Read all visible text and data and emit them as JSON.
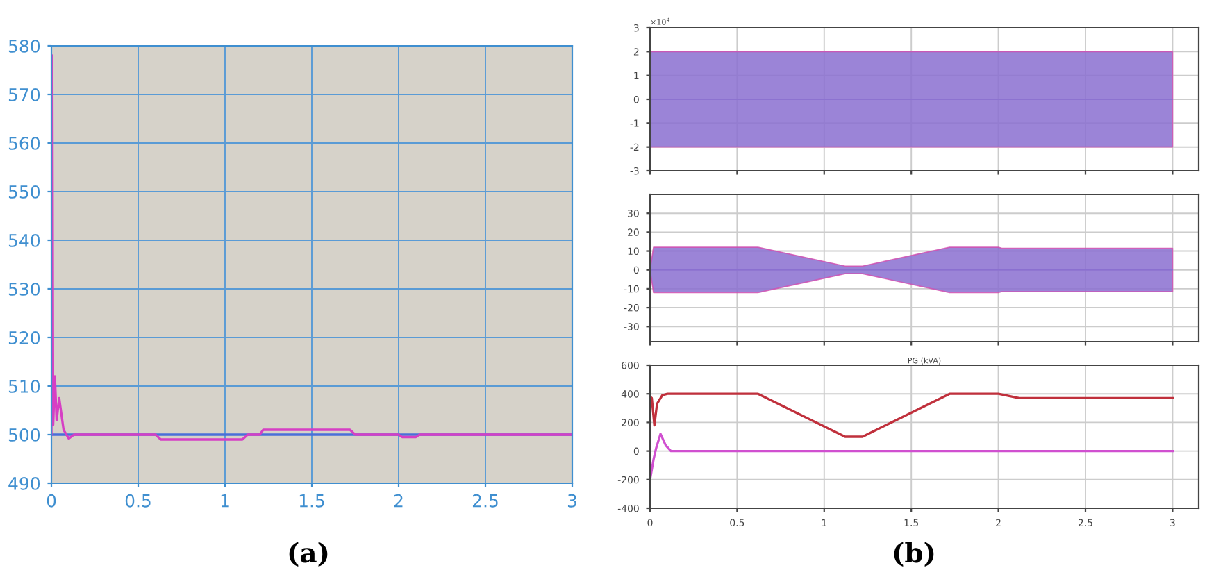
{
  "chart_data": [
    {
      "type": "line",
      "xlim": [
        0,
        3
      ],
      "ylim": [
        490,
        580
      ],
      "xticks": [
        0,
        0.5,
        1,
        1.5,
        2,
        2.5,
        3
      ],
      "yticks": [
        490,
        500,
        510,
        520,
        530,
        540,
        550,
        560,
        570,
        580
      ],
      "grid": true,
      "annotations": [
        "(a)"
      ],
      "series": [
        {
          "color": "#4a6fd8",
          "x": [
            0,
            3
          ],
          "values": [
            500,
            500
          ]
        },
        {
          "color": "#d63fc4",
          "x": [
            0,
            0.005,
            0.01,
            0.02,
            0.03,
            0.045,
            0.07,
            0.1,
            0.13,
            0.6,
            0.63,
            1.1,
            1.13,
            1.2,
            1.22,
            1.72,
            1.75,
            2.0,
            2.02,
            2.1,
            2.12,
            3
          ],
          "values": [
            500,
            578,
            502,
            512,
            503,
            507.5,
            501,
            499.2,
            500,
            500,
            499,
            499,
            500,
            500,
            501,
            501,
            500,
            500,
            499.5,
            499.5,
            500,
            500
          ]
        }
      ]
    },
    {
      "type": "line",
      "xlim": [
        0,
        3.15
      ],
      "ylim": [
        -3,
        3
      ],
      "yticks": [
        -3,
        -2,
        -1,
        0,
        1,
        2,
        3
      ],
      "grid": true,
      "tick_labels": "y",
      "annotations": [
        "×10$^{4}$"
      ],
      "series": [
        {
          "color": "#8a6fd0",
          "x": [
            0,
            3
          ],
          "values": [
            0,
            0
          ],
          "lower": [
            -2,
            -2
          ],
          "upper": [
            2,
            2
          ]
        }
      ]
    },
    {
      "type": "line",
      "xlim": [
        0,
        3.15
      ],
      "ylim": [
        -38,
        40
      ],
      "yticks": [
        -30,
        -20,
        -10,
        0,
        10,
        20,
        30
      ],
      "grid": true,
      "tick_labels": "y",
      "series": [
        {
          "color": "#8a6fd0",
          "x": [
            0,
            0.02,
            0.62,
            1.12,
            1.22,
            1.72,
            2.0,
            2.02,
            3
          ],
          "values": [
            0,
            0,
            0,
            0,
            0,
            0,
            0,
            0,
            0
          ],
          "lower": [
            0,
            -12,
            -12,
            -2,
            -2,
            -12,
            -12,
            -11.5,
            -11.5
          ],
          "upper": [
            0,
            12,
            12,
            2,
            2,
            12,
            12,
            11.5,
            11.5
          ]
        }
      ]
    },
    {
      "type": "line",
      "title": "PG (kVA)",
      "xlim": [
        0,
        3.15
      ],
      "ylim": [
        -400,
        600
      ],
      "xticks": [
        0,
        0.5,
        1,
        1.5,
        2,
        2.5,
        3
      ],
      "yticks": [
        -400,
        -200,
        0,
        200,
        400,
        600
      ],
      "grid": true,
      "annotations": [
        "(b)"
      ],
      "series": [
        {
          "color": "#c0303c",
          "x": [
            0,
            0.01,
            0.025,
            0.04,
            0.07,
            0.1,
            0.62,
            1.12,
            1.22,
            1.72,
            2.0,
            2.12,
            3
          ],
          "values": [
            380,
            370,
            180,
            330,
            390,
            400,
            400,
            100,
            100,
            400,
            400,
            370,
            370
          ]
        },
        {
          "color": "#d050d0",
          "x": [
            0,
            0.02,
            0.035,
            0.06,
            0.09,
            0.12,
            3
          ],
          "values": [
            -200,
            -60,
            20,
            120,
            40,
            0,
            0
          ]
        }
      ]
    }
  ]
}
